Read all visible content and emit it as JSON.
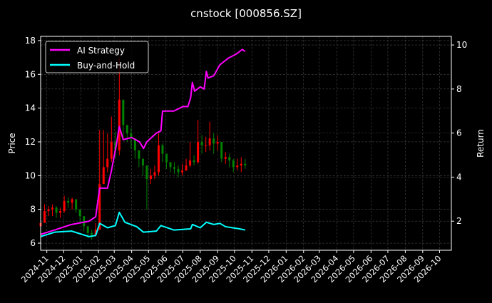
{
  "chart_data": {
    "type": "candlestick+line",
    "title": "cnstock [000856.SZ]",
    "ylabel": "Price",
    "ylabel_right": "Return",
    "ylim": [
      5.58,
      18.25
    ],
    "ylim_right": [
      0.68,
      10.39
    ],
    "xlim": [
      "2024-10-21",
      "2026-10-22"
    ],
    "grid": true,
    "legend_position": "top-left",
    "colors": {
      "background": "#000000",
      "up": "#ff0000",
      "down": "#008000",
      "ai_strategy": "#ff00ff",
      "buy_and_hold": "#00ffff",
      "grid": "#444444"
    },
    "y_ticks": [
      6,
      8,
      10,
      12,
      14,
      16,
      18
    ],
    "y_ticks_right": [
      2,
      4,
      6,
      8,
      10
    ],
    "x_ticks": [
      "2024-11",
      "2024-12",
      "2025-01",
      "2025-02",
      "2025-03",
      "2025-04",
      "2025-05",
      "2025-06",
      "2025-07",
      "2025-08",
      "2025-09",
      "2025-10",
      "2025-11",
      "2025-12",
      "2026-01",
      "2026-02",
      "2026-03",
      "2026-04",
      "2026-05",
      "2026-06",
      "2026-07",
      "2026-08",
      "2026-09",
      "2026-10"
    ],
    "price": {
      "dates": [
        "2024-10-21",
        "2024-10-28",
        "2024-11-04",
        "2024-11-11",
        "2024-11-18",
        "2024-11-25",
        "2024-12-02",
        "2024-12-09",
        "2024-12-16",
        "2024-12-23",
        "2024-12-30",
        "2025-01-06",
        "2025-01-13",
        "2025-01-20",
        "2025-01-27",
        "2025-02-03",
        "2025-02-10",
        "2025-02-17",
        "2025-02-24",
        "2025-03-03",
        "2025-03-10",
        "2025-03-17",
        "2025-03-24",
        "2025-03-31",
        "2025-04-07",
        "2025-04-14",
        "2025-04-21",
        "2025-04-28",
        "2025-05-05",
        "2025-05-12",
        "2025-05-19",
        "2025-05-26",
        "2025-06-02",
        "2025-06-09",
        "2025-06-16",
        "2025-06-23",
        "2025-06-30",
        "2025-07-07",
        "2025-07-14",
        "2025-07-21",
        "2025-07-28",
        "2025-08-04",
        "2025-08-11",
        "2025-08-18",
        "2025-08-25",
        "2025-09-01",
        "2025-09-08",
        "2025-09-15",
        "2025-09-22",
        "2025-09-29",
        "2025-10-06",
        "2025-10-13",
        "2025-10-20"
      ],
      "close": [
        7.2,
        7.9,
        8.0,
        8.1,
        7.8,
        7.9,
        8.5,
        8.4,
        8.6,
        8.0,
        7.6,
        7.0,
        6.6,
        6.5,
        6.8,
        9.5,
        10.5,
        11.0,
        12.0,
        11.5,
        14.5,
        13.0,
        12.5,
        12.2,
        11.5,
        11.0,
        10.6,
        9.8,
        10.0,
        10.2,
        11.8,
        11.3,
        10.8,
        10.5,
        10.4,
        10.2,
        10.3,
        10.6,
        10.9,
        10.8,
        12.0,
        11.8,
        11.8,
        12.2,
        11.9,
        12.0,
        11.0,
        11.1,
        10.9,
        10.5,
        10.6,
        10.7,
        10.6
      ],
      "high": [
        7.5,
        8.3,
        8.2,
        8.3,
        8.2,
        8.1,
        8.8,
        8.7,
        8.7,
        8.6,
        8.0,
        7.4,
        7.0,
        6.8,
        7.2,
        12.7,
        12.7,
        12.5,
        13.5,
        12.6,
        17.0,
        14.2,
        13.0,
        12.8,
        12.2,
        11.5,
        11.0,
        10.3,
        10.4,
        10.6,
        12.5,
        11.9,
        11.2,
        10.8,
        10.8,
        10.6,
        10.7,
        11.0,
        12.0,
        11.2,
        13.3,
        12.4,
        12.3,
        13.2,
        12.5,
        12.4,
        12.0,
        11.4,
        11.3,
        11.0,
        11.0,
        11.1,
        11.0
      ],
      "low": [
        7.0,
        7.2,
        7.6,
        7.6,
        7.5,
        7.5,
        7.8,
        8.1,
        8.0,
        7.8,
        7.2,
        6.7,
        6.3,
        6.2,
        6.4,
        6.8,
        9.6,
        10.2,
        10.8,
        11.0,
        11.2,
        12.2,
        12.0,
        11.6,
        11.0,
        10.5,
        10.0,
        8.0,
        9.5,
        9.8,
        10.0,
        10.8,
        10.4,
        10.2,
        10.1,
        9.9,
        10.0,
        10.3,
        10.5,
        10.6,
        10.7,
        11.3,
        11.4,
        11.5,
        11.3,
        11.5,
        10.8,
        10.7,
        10.5,
        10.2,
        10.3,
        10.2,
        10.4
      ]
    },
    "series": [
      {
        "name": "AI Strategy",
        "dates": [
          "2024-10-21",
          "2024-11-15",
          "2024-12-15",
          "2025-01-15",
          "2025-01-27",
          "2025-02-03",
          "2025-02-17",
          "2025-02-24",
          "2025-03-05",
          "2025-03-10",
          "2025-03-17",
          "2025-04-01",
          "2025-04-15",
          "2025-04-22",
          "2025-04-28",
          "2025-05-15",
          "2025-05-23",
          "2025-05-26",
          "2025-06-15",
          "2025-07-01",
          "2025-07-10",
          "2025-07-15",
          "2025-07-18",
          "2025-07-22",
          "2025-08-01",
          "2025-08-08",
          "2025-08-12",
          "2025-08-15",
          "2025-08-25",
          "2025-09-05",
          "2025-09-20",
          "2025-10-05",
          "2025-10-15",
          "2025-10-20"
        ],
        "values": [
          1.4,
          1.6,
          1.85,
          2.0,
          2.2,
          3.5,
          3.5,
          4.3,
          5.5,
          6.3,
          5.7,
          5.8,
          5.6,
          5.3,
          5.6,
          6.0,
          6.1,
          7.0,
          7.0,
          7.2,
          7.2,
          7.6,
          8.3,
          7.9,
          8.1,
          8.0,
          8.8,
          8.5,
          8.6,
          9.1,
          9.4,
          9.6,
          9.8,
          9.7
        ]
      },
      {
        "name": "Buy-and-Hold",
        "dates": [
          "2024-10-21",
          "2024-11-15",
          "2024-12-15",
          "2025-01-15",
          "2025-01-27",
          "2025-02-03",
          "2025-02-17",
          "2025-03-03",
          "2025-03-10",
          "2025-03-20",
          "2025-04-10",
          "2025-04-22",
          "2025-05-15",
          "2025-05-23",
          "2025-06-15",
          "2025-07-15",
          "2025-07-18",
          "2025-08-01",
          "2025-08-12",
          "2025-08-25",
          "2025-09-05",
          "2025-09-15",
          "2025-10-10",
          "2025-10-20"
        ],
        "values": [
          1.3,
          1.5,
          1.55,
          1.3,
          1.35,
          1.9,
          1.7,
          1.8,
          2.4,
          1.95,
          1.75,
          1.5,
          1.55,
          1.8,
          1.6,
          1.65,
          1.85,
          1.7,
          1.95,
          1.85,
          1.9,
          1.75,
          1.65,
          1.6
        ]
      }
    ]
  }
}
